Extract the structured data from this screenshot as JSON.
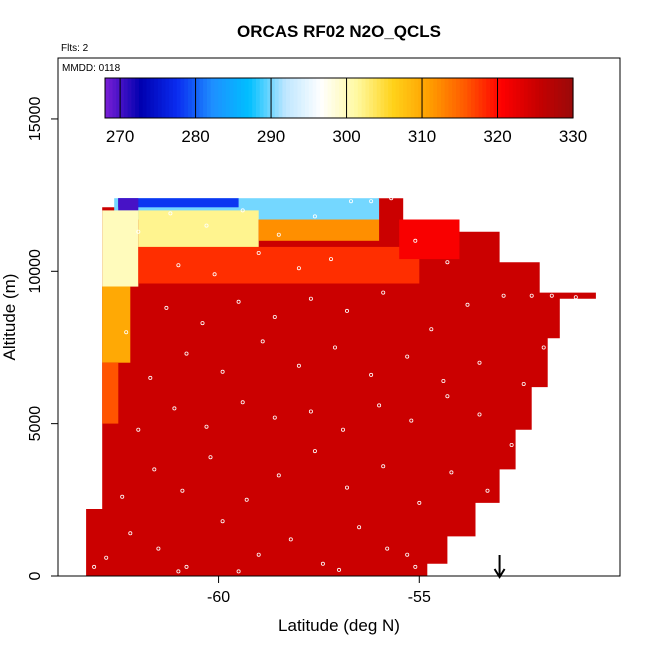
{
  "chart_data": {
    "type": "heatmap",
    "title": "ORCAS RF02 N2O_QCLS",
    "flights_note": "Flts: 2",
    "date_note": "MMDD: 0118",
    "xlabel": "Latitude (deg N)",
    "ylabel": "Altitude (m)",
    "xlim": [
      -64.0,
      -50.0
    ],
    "ylim": [
      0,
      17000
    ],
    "x_ticks": [
      -60,
      -55
    ],
    "x_tick_labels": [
      "-60",
      "-55"
    ],
    "y_ticks": [
      0,
      5000,
      10000,
      15000
    ],
    "y_tick_labels": [
      "0",
      "5000",
      "10000",
      "15000"
    ],
    "grid": false,
    "colorbar": {
      "placement": "inside-top",
      "range": [
        268,
        330
      ],
      "ticks": [
        270,
        280,
        290,
        300,
        310,
        320,
        330
      ],
      "tick_labels": [
        "270",
        "280",
        "290",
        "300",
        "310",
        "320",
        "330"
      ],
      "colors": [
        "#7a1fd6",
        "#0000b0",
        "#0a2cf0",
        "#1e90ff",
        "#00bfff",
        "#bde6ff",
        "#ffffff",
        "#fff9a0",
        "#ffd21a",
        "#ff9f00",
        "#ff5a00",
        "#ff0000",
        "#c80000",
        "#9a0a0a"
      ]
    },
    "field": {
      "background_value": 325,
      "upper_boundary": [
        {
          "lat": -63.3,
          "alt": 0
        },
        {
          "lat": -63.3,
          "alt": 2200
        },
        {
          "lat": -62.9,
          "alt": 2200
        },
        {
          "lat": -62.9,
          "alt": 12100
        },
        {
          "lat": -62.5,
          "alt": 12100
        },
        {
          "lat": -62.5,
          "alt": 12300
        },
        {
          "lat": -56.5,
          "alt": 12300
        },
        {
          "lat": -56.0,
          "alt": 12400
        },
        {
          "lat": -55.4,
          "alt": 12400
        },
        {
          "lat": -55.4,
          "alt": 11700
        },
        {
          "lat": -54.0,
          "alt": 11700
        },
        {
          "lat": -54.0,
          "alt": 11300
        },
        {
          "lat": -53.0,
          "alt": 11300
        },
        {
          "lat": -53.0,
          "alt": 10300
        },
        {
          "lat": -52.0,
          "alt": 10300
        },
        {
          "lat": -52.0,
          "alt": 9300
        },
        {
          "lat": -50.6,
          "alt": 9300
        },
        {
          "lat": -50.6,
          "alt": 9100
        },
        {
          "lat": -51.5,
          "alt": 9100
        },
        {
          "lat": -51.5,
          "alt": 7800
        },
        {
          "lat": -51.8,
          "alt": 7800
        },
        {
          "lat": -51.8,
          "alt": 6200
        },
        {
          "lat": -52.2,
          "alt": 6200
        },
        {
          "lat": -52.2,
          "alt": 4800
        },
        {
          "lat": -52.6,
          "alt": 4800
        },
        {
          "lat": -52.6,
          "alt": 3500
        },
        {
          "lat": -53.0,
          "alt": 3500
        },
        {
          "lat": -53.0,
          "alt": 2400
        },
        {
          "lat": -53.6,
          "alt": 2400
        },
        {
          "lat": -53.6,
          "alt": 1300
        },
        {
          "lat": -54.3,
          "alt": 1300
        },
        {
          "lat": -54.3,
          "alt": 400
        },
        {
          "lat": -54.8,
          "alt": 400
        },
        {
          "lat": -54.8,
          "alt": 0
        }
      ],
      "anomalies": [
        {
          "lat_min": -62.6,
          "lat_max": -56.0,
          "alt_min": 11700,
          "alt_max": 12400,
          "value": 290
        },
        {
          "lat_min": -62.5,
          "lat_max": -59.5,
          "alt_min": 12100,
          "alt_max": 12400,
          "value": 278
        },
        {
          "lat_min": -62.5,
          "lat_max": -62.0,
          "alt_min": 12000,
          "alt_max": 12400,
          "value": 270
        },
        {
          "lat_min": -62.9,
          "lat_max": -62.0,
          "alt_min": 9500,
          "alt_max": 12000,
          "value": 300
        },
        {
          "lat_min": -62.9,
          "lat_max": -62.2,
          "alt_min": 7000,
          "alt_max": 9500,
          "value": 310
        },
        {
          "lat_min": -62.9,
          "lat_max": -62.5,
          "alt_min": 5000,
          "alt_max": 7000,
          "value": 316
        },
        {
          "lat_min": -62.0,
          "lat_max": -59.0,
          "alt_min": 10800,
          "alt_max": 12000,
          "value": 302
        },
        {
          "lat_min": -59.0,
          "lat_max": -56.0,
          "alt_min": 11000,
          "alt_max": 11700,
          "value": 312
        },
        {
          "lat_min": -62.0,
          "lat_max": -55.0,
          "alt_min": 9600,
          "alt_max": 10800,
          "value": 318
        },
        {
          "lat_min": -55.5,
          "lat_max": -54.0,
          "alt_min": 10400,
          "alt_max": 11700,
          "value": 321
        }
      ],
      "sample_points": [
        {
          "lat": -62.8,
          "alt": 600
        },
        {
          "lat": -62.2,
          "alt": 1400
        },
        {
          "lat": -61.5,
          "alt": 900
        },
        {
          "lat": -60.8,
          "alt": 300
        },
        {
          "lat": -59.9,
          "alt": 1800
        },
        {
          "lat": -59.0,
          "alt": 700
        },
        {
          "lat": -58.2,
          "alt": 1200
        },
        {
          "lat": -57.4,
          "alt": 400
        },
        {
          "lat": -56.5,
          "alt": 1600
        },
        {
          "lat": -55.8,
          "alt": 900
        },
        {
          "lat": -55.1,
          "alt": 300
        },
        {
          "lat": -62.4,
          "alt": 2600
        },
        {
          "lat": -61.6,
          "alt": 3500
        },
        {
          "lat": -60.9,
          "alt": 2800
        },
        {
          "lat": -60.2,
          "alt": 3900
        },
        {
          "lat": -59.3,
          "alt": 2500
        },
        {
          "lat": -58.5,
          "alt": 3300
        },
        {
          "lat": -57.6,
          "alt": 4100
        },
        {
          "lat": -56.8,
          "alt": 2900
        },
        {
          "lat": -55.9,
          "alt": 3600
        },
        {
          "lat": -55.0,
          "alt": 2400
        },
        {
          "lat": -54.2,
          "alt": 3400
        },
        {
          "lat": -53.3,
          "alt": 2800
        },
        {
          "lat": -62.0,
          "alt": 4800
        },
        {
          "lat": -61.1,
          "alt": 5500
        },
        {
          "lat": -60.3,
          "alt": 4900
        },
        {
          "lat": -59.4,
          "alt": 5700
        },
        {
          "lat": -58.6,
          "alt": 5200
        },
        {
          "lat": -57.7,
          "alt": 5400
        },
        {
          "lat": -56.9,
          "alt": 4800
        },
        {
          "lat": -56.0,
          "alt": 5600
        },
        {
          "lat": -55.2,
          "alt": 5100
        },
        {
          "lat": -54.3,
          "alt": 5900
        },
        {
          "lat": -53.5,
          "alt": 5300
        },
        {
          "lat": -52.7,
          "alt": 4300
        },
        {
          "lat": -61.7,
          "alt": 6500
        },
        {
          "lat": -60.8,
          "alt": 7300
        },
        {
          "lat": -59.9,
          "alt": 6700
        },
        {
          "lat": -58.9,
          "alt": 7700
        },
        {
          "lat": -58.0,
          "alt": 6900
        },
        {
          "lat": -57.1,
          "alt": 7500
        },
        {
          "lat": -56.2,
          "alt": 6600
        },
        {
          "lat": -55.3,
          "alt": 7200
        },
        {
          "lat": -54.4,
          "alt": 6400
        },
        {
          "lat": -53.5,
          "alt": 7000
        },
        {
          "lat": -52.4,
          "alt": 6300
        },
        {
          "lat": -51.9,
          "alt": 7500
        },
        {
          "lat": -62.3,
          "alt": 8000
        },
        {
          "lat": -61.3,
          "alt": 8800
        },
        {
          "lat": -60.4,
          "alt": 8300
        },
        {
          "lat": -59.5,
          "alt": 9000
        },
        {
          "lat": -58.6,
          "alt": 8500
        },
        {
          "lat": -57.7,
          "alt": 9100
        },
        {
          "lat": -56.8,
          "alt": 8700
        },
        {
          "lat": -55.9,
          "alt": 9300
        },
        {
          "lat": -54.7,
          "alt": 8100
        },
        {
          "lat": -53.8,
          "alt": 8900
        },
        {
          "lat": -52.9,
          "alt": 9200
        },
        {
          "lat": -52.2,
          "alt": 9200
        },
        {
          "lat": -51.7,
          "alt": 9200
        },
        {
          "lat": -51.1,
          "alt": 9150
        },
        {
          "lat": -62.0,
          "alt": 11300
        },
        {
          "lat": -61.2,
          "alt": 11900
        },
        {
          "lat": -60.3,
          "alt": 11500
        },
        {
          "lat": -59.4,
          "alt": 12000
        },
        {
          "lat": -58.5,
          "alt": 11200
        },
        {
          "lat": -57.6,
          "alt": 11800
        },
        {
          "lat": -56.7,
          "alt": 12300
        },
        {
          "lat": -56.2,
          "alt": 12300
        },
        {
          "lat": -55.7,
          "alt": 12400
        },
        {
          "lat": -55.1,
          "alt": 11000
        },
        {
          "lat": -54.3,
          "alt": 10300
        },
        {
          "lat": -61.0,
          "alt": 10200
        },
        {
          "lat": -60.1,
          "alt": 9900
        },
        {
          "lat": -59.0,
          "alt": 10600
        },
        {
          "lat": -58.0,
          "alt": 10100
        },
        {
          "lat": -57.2,
          "alt": 10400
        },
        {
          "lat": -63.1,
          "alt": 300
        },
        {
          "lat": -61.0,
          "alt": 150
        },
        {
          "lat": -59.5,
          "alt": 150
        },
        {
          "lat": -57.0,
          "alt": 200
        },
        {
          "lat": -55.3,
          "alt": 700
        }
      ],
      "marker_latitude": -53.0
    }
  }
}
